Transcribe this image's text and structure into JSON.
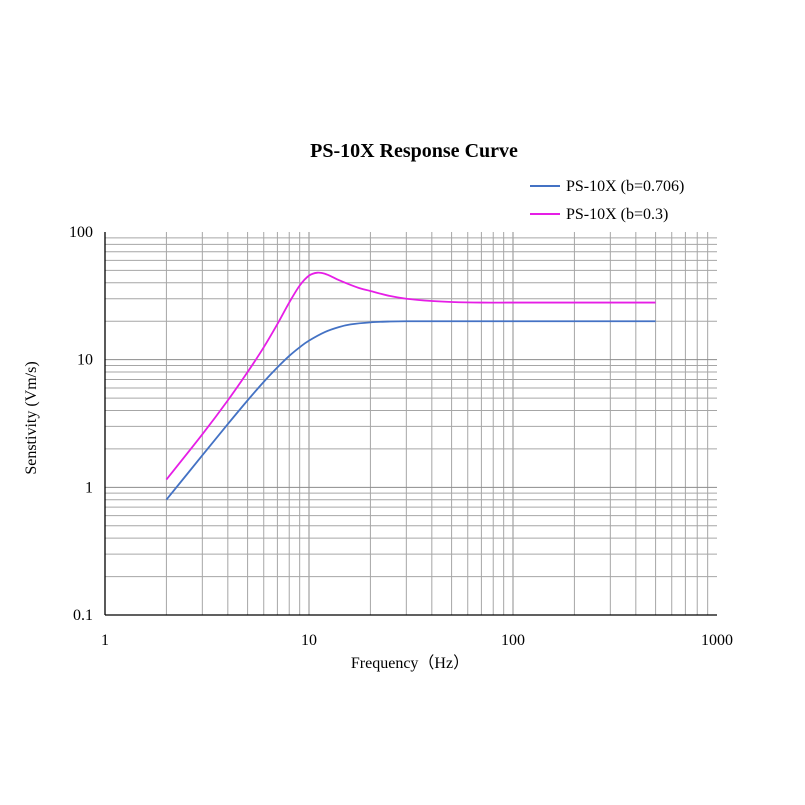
{
  "chart_data": {
    "type": "line",
    "title": "PS-10X Response Curve",
    "xlabel": "Frequency（Hz）",
    "ylabel": "Senstivity (Vm/s)",
    "xscale": "log",
    "yscale": "log",
    "xlim": [
      1,
      1000
    ],
    "ylim": [
      0.1,
      100
    ],
    "xticks": [
      "1",
      "10",
      "100",
      "1000"
    ],
    "yticks": [
      "0.1",
      "1",
      "10",
      "100"
    ],
    "grid": true,
    "legend_position": "top-right",
    "series": [
      {
        "name": "PS-10X (b=0.706)",
        "color": "#4472c4",
        "x": [
          2,
          3,
          4,
          5,
          6,
          7,
          8,
          9,
          10,
          12,
          14,
          16,
          20,
          25,
          30,
          40,
          50,
          70,
          100,
          200,
          500
        ],
        "y": [
          0.8,
          1.78,
          3.13,
          4.8,
          6.7,
          8.7,
          10.7,
          12.5,
          14.1,
          16.5,
          18.0,
          18.9,
          19.6,
          19.9,
          20.0,
          20.0,
          20.0,
          20.0,
          20.0,
          20.0,
          20.0
        ]
      },
      {
        "name": "PS-10X (b=0.3)",
        "color": "#e61ee6",
        "x": [
          2,
          3,
          4,
          5,
          6,
          7,
          8,
          9,
          10,
          11,
          12,
          13,
          14,
          16,
          18,
          20,
          25,
          30,
          40,
          50,
          70,
          100,
          200,
          500
        ],
        "y": [
          1.15,
          2.6,
          4.8,
          8.0,
          12.5,
          19.0,
          28.0,
          38.0,
          45.5,
          48.0,
          47.0,
          44.5,
          42.0,
          38.5,
          36.0,
          34.5,
          31.5,
          30.0,
          28.8,
          28.3,
          28.0,
          28.0,
          28.0,
          28.0
        ]
      }
    ]
  }
}
